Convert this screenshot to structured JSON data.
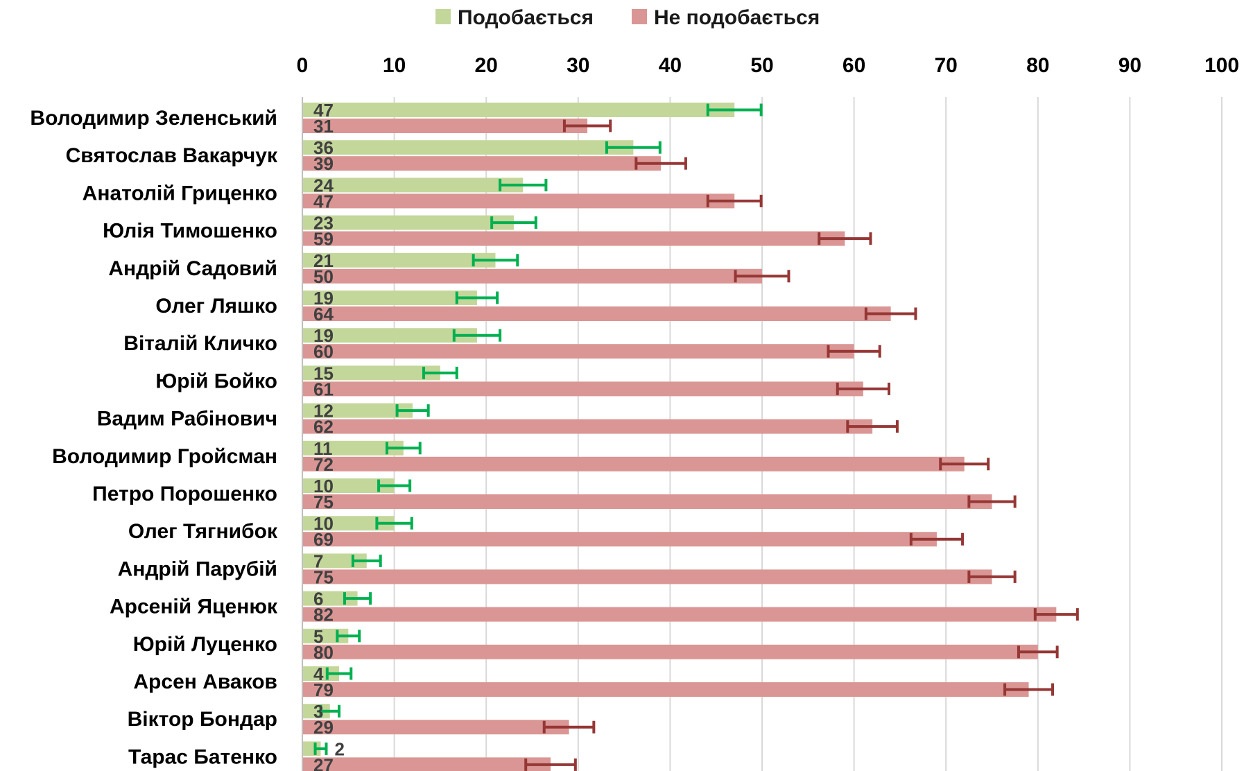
{
  "chart_data": {
    "type": "bar",
    "orientation": "horizontal",
    "xlim": [
      0,
      100
    ],
    "x_ticks": [
      0,
      10,
      20,
      30,
      40,
      50,
      60,
      70,
      80,
      90,
      100
    ],
    "grid": true,
    "legend_position": "top-center",
    "categories": [
      "Володимир Зеленський",
      "Святослав Вакарчук",
      "Анатолій Гриценко",
      "Юлія Тимошенко",
      "Андрій Садовий",
      "Олег Ляшко",
      "Віталій Кличко",
      "Юрій Бойко",
      "Вадим Рабінович",
      "Володимир Гройсман",
      "Петро Порошенко",
      "Олег Тягнибок",
      "Андрій Парубій",
      "Арсеній Яценюк",
      "Юрій Луценко",
      "Арсен Аваков",
      "Віктор Бондар",
      "Тарас Батенко"
    ],
    "series": [
      {
        "name": "Подобається",
        "color": "#c4d79b",
        "error_color": "#00b050",
        "values": [
          47,
          36,
          24,
          23,
          21,
          19,
          19,
          15,
          12,
          11,
          10,
          10,
          7,
          6,
          5,
          4,
          3,
          2
        ],
        "error": [
          2.9,
          2.9,
          2.5,
          2.4,
          2.4,
          2.2,
          2.5,
          1.8,
          1.7,
          1.8,
          1.7,
          1.9,
          1.5,
          1.4,
          1.2,
          1.3,
          1.0,
          0.6
        ]
      },
      {
        "name": "Не подобається",
        "color": "#da9694",
        "error_color": "#953735",
        "values": [
          31,
          39,
          47,
          59,
          50,
          64,
          60,
          61,
          62,
          72,
          75,
          69,
          75,
          82,
          80,
          79,
          29,
          27
        ],
        "error": [
          2.5,
          2.7,
          2.9,
          2.8,
          2.9,
          2.7,
          2.8,
          2.8,
          2.7,
          2.6,
          2.5,
          2.8,
          2.5,
          2.3,
          2.1,
          2.6,
          2.7,
          2.7
        ]
      }
    ]
  }
}
